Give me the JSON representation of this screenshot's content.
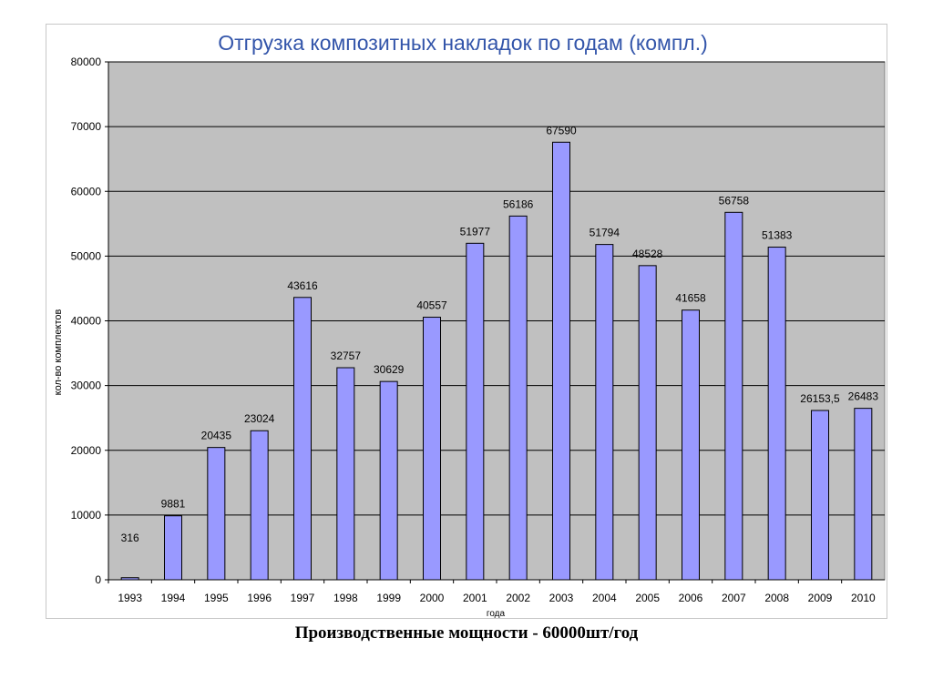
{
  "chart_data": {
    "type": "bar",
    "title": "Отгрузка композитных накладок по годам (компл.)",
    "xlabel": "года",
    "ylabel": "кол-во комплектов",
    "categories": [
      "1993",
      "1994",
      "1995",
      "1996",
      "1997",
      "1998",
      "1999",
      "2000",
      "2001",
      "2002",
      "2003",
      "2004",
      "2005",
      "2006",
      "2007",
      "2008",
      "2009",
      "2010"
    ],
    "values": [
      316,
      9881,
      20435,
      23024,
      43616,
      32757,
      30629,
      40557,
      51977,
      56186,
      67590,
      51794,
      48528,
      41658,
      56758,
      51383,
      26153.5,
      26483
    ],
    "value_labels": [
      "316",
      "9881",
      "20435",
      "23024",
      "43616",
      "32757",
      "30629",
      "40557",
      "51977",
      "56186",
      "67590",
      "51794",
      "48528",
      "41658",
      "56758",
      "51383",
      "26153,5",
      "26483"
    ],
    "ylim": [
      0,
      80000
    ],
    "yticks": [
      "0",
      "10000",
      "20000",
      "30000",
      "40000",
      "50000",
      "60000",
      "70000",
      "80000"
    ],
    "grid": true,
    "legend": "none",
    "colors": {
      "bar": "#9999ff",
      "bar_border": "#000000",
      "plot_bg": "#c0c0c0",
      "title": "#3355aa"
    }
  },
  "caption": "Производственные мощности - 60000шт/год"
}
